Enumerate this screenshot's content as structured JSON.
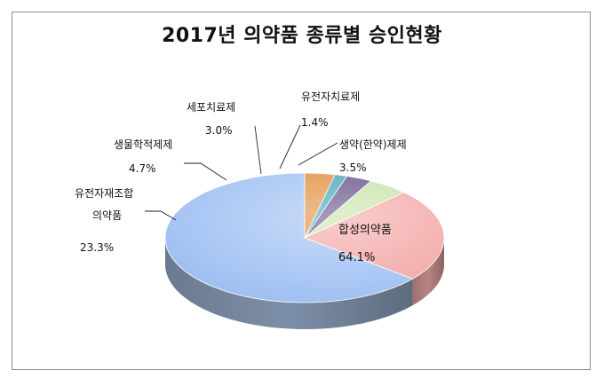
{
  "chart_data": {
    "type": "pie",
    "title": "2017년 의약품 종류별 승인현황",
    "slices": [
      {
        "name": "합성의약품",
        "value": 64.1,
        "label": "64.1%",
        "color": "#9dbef2",
        "dark": "#7d8fa8"
      },
      {
        "name": "유전자재조합 의약품",
        "value": 23.3,
        "label": "23.3%",
        "color": "#f2a5a3",
        "dark": "#b98482"
      },
      {
        "name": "생물학적제제",
        "value": 4.7,
        "label": "4.7%",
        "color": "#c6e3a4",
        "dark": "#95ab7b"
      },
      {
        "name": "세포치료제",
        "value": 3.0,
        "label": "3.0%",
        "color": "#5e4a86",
        "dark": "#3f3160"
      },
      {
        "name": "유전자치료제",
        "value": 1.4,
        "label": "1.4%",
        "color": "#3aa3b6",
        "dark": "#2a7686"
      },
      {
        "name": "생약(한약)제제",
        "value": 3.5,
        "label": "3.5%",
        "color": "#e08a36",
        "dark": "#a96527"
      }
    ],
    "name_lines": [
      [
        "합성의약품"
      ],
      [
        "유전자재조합",
        "의약품"
      ],
      [
        "생물학적제제"
      ],
      [
        "세포치료제"
      ],
      [
        "유전자치료제"
      ],
      [
        "생약(한약)제제"
      ]
    ],
    "legend": "none"
  }
}
